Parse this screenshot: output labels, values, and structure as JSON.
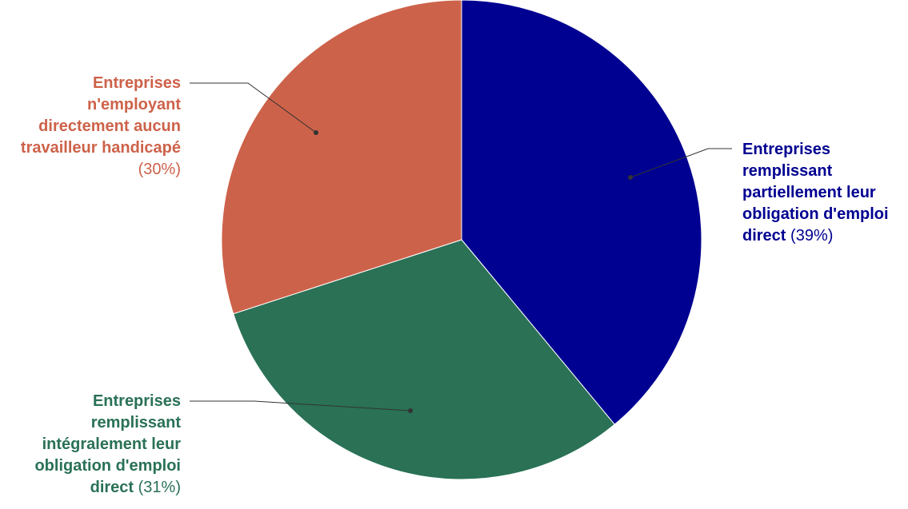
{
  "chart_data": {
    "type": "pie",
    "categories": [
      "Entreprises remplissant partiellement leur obligation d'emploi direct",
      "Entreprises remplissant intégralement leur obligation d'emploi direct",
      "Entreprises n'employant directement aucun travailleur handicapé"
    ],
    "values": [
      39,
      31,
      30
    ],
    "value_labels": [
      "(39%)",
      "(31%)",
      "(30%)"
    ],
    "colors": [
      "#000091",
      "#2a7156",
      "#cd624a"
    ]
  }
}
